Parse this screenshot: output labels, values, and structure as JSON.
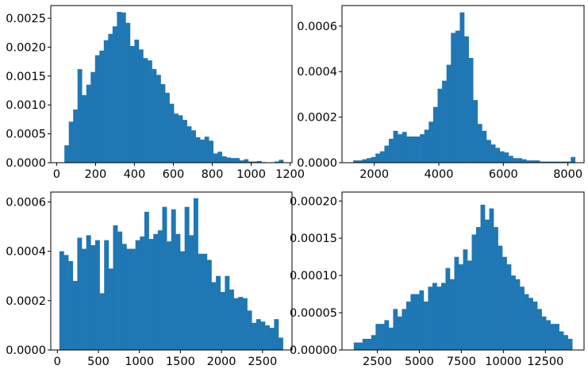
{
  "figure": {
    "background": "#ffffff",
    "bar_color": "#1f77b4"
  },
  "chart_data": [
    {
      "type": "bar",
      "subtype": "histogram",
      "grid": false,
      "xlim": [
        -30,
        1210
      ],
      "ylim": [
        0,
        0.00272
      ],
      "x_ticks": [
        0,
        200,
        400,
        600,
        800,
        1000,
        1200
      ],
      "x_tick_labels": [
        "0",
        "200",
        "400",
        "600",
        "800",
        "1000",
        "1200"
      ],
      "y_ticks": [
        0,
        0.0005,
        0.001,
        0.0015,
        0.002,
        0.0025
      ],
      "y_tick_labels": [
        "0.0000",
        "0.0005",
        "0.0010",
        "0.0015",
        "0.0020",
        "0.0025"
      ],
      "bin_start": 40,
      "bin_width": 22.5,
      "values": [
        0.0003,
        0.00071,
        0.00092,
        0.00162,
        0.00117,
        0.00135,
        0.00157,
        0.00186,
        0.00194,
        0.00212,
        0.00223,
        0.00236,
        0.00261,
        0.0026,
        0.00242,
        0.00202,
        0.00213,
        0.00196,
        0.00181,
        0.00177,
        0.00162,
        0.00152,
        0.00136,
        0.00121,
        0.00102,
        0.00085,
        0.00082,
        0.00074,
        0.00063,
        0.00056,
        0.00044,
        0.0004,
        0.00045,
        0.00038,
        0.00016,
        0.00019,
        0.00011,
        9e-05,
        8e-05,
        8e-05,
        4e-05,
        6e-05,
        2e-05,
        2e-05,
        3e-05,
        1e-05,
        0.0,
        0.0,
        2e-05,
        5e-05
      ]
    },
    {
      "type": "bar",
      "subtype": "histogram",
      "grid": false,
      "xlim": [
        1000,
        8500
      ],
      "ylim": [
        0,
        0.00069
      ],
      "x_ticks": [
        2000,
        4000,
        6000,
        8000
      ],
      "x_tick_labels": [
        "2000",
        "4000",
        "6000",
        "8000"
      ],
      "y_ticks": [
        0,
        0.0002,
        0.0004,
        0.0006
      ],
      "y_tick_labels": [
        "0.0000",
        "0.0002",
        "0.0004",
        "0.0006"
      ],
      "bin_start": 1350,
      "bin_width": 137.5,
      "values": [
        1e-05,
        1e-05,
        1.5e-05,
        2e-05,
        2.5e-05,
        4e-05,
        5e-05,
        7.5e-05,
        0.000105,
        0.00014,
        0.000125,
        0.000135,
        0.000115,
        0.000115,
        0.000115,
        0.000125,
        0.000145,
        0.00018,
        0.000245,
        0.000325,
        0.00036,
        0.00043,
        0.00057,
        0.00058,
        0.00066,
        0.000555,
        0.00046,
        0.000275,
        0.00017,
        0.00014,
        0.0001,
        8e-05,
        6.5e-05,
        5e-05,
        4.5e-05,
        3e-05,
        2e-05,
        2e-05,
        1.5e-05,
        1e-05,
        1e-05,
        1e-05,
        5e-06,
        5e-06,
        5e-06,
        5e-06,
        5e-06,
        5e-06,
        5e-06,
        2.5e-05
      ]
    },
    {
      "type": "bar",
      "subtype": "histogram",
      "grid": false,
      "xlim": [
        -80,
        2860
      ],
      "ylim": [
        0,
        0.00064
      ],
      "x_ticks": [
        0,
        500,
        1000,
        1500,
        2000,
        2500
      ],
      "x_tick_labels": [
        "0",
        "500",
        "1000",
        "1500",
        "2000",
        "2500"
      ],
      "y_ticks": [
        0,
        0.0002,
        0.0004,
        0.0006
      ],
      "y_tick_labels": [
        "0.0000",
        "0.0002",
        "0.0004",
        "0.0006"
      ],
      "bin_start": 25,
      "bin_width": 54.5,
      "values": [
        0.0004,
        0.000385,
        0.00036,
        0.00028,
        0.000455,
        0.00041,
        0.000465,
        0.000425,
        0.000445,
        0.00023,
        0.000445,
        0.00033,
        0.000505,
        0.00048,
        0.00043,
        0.00041,
        0.00041,
        0.000445,
        0.00046,
        0.00056,
        0.00045,
        0.00047,
        0.000485,
        0.00058,
        0.00044,
        0.00057,
        0.00047,
        0.0004,
        0.00058,
        0.000465,
        0.000615,
        0.00039,
        0.00039,
        0.000365,
        0.000275,
        0.0003,
        0.000235,
        0.0003,
        0.000245,
        0.00021,
        0.000215,
        0.00021,
        0.00016,
        0.00011,
        0.000125,
        0.000115,
        0.0001,
        9e-05,
        0.000125,
        5e-05
      ]
    },
    {
      "type": "bar",
      "subtype": "histogram",
      "grid": false,
      "xlim": [
        400,
        14800
      ],
      "ylim": [
        0,
        0.000212
      ],
      "x_ticks": [
        2500,
        5000,
        7500,
        10000,
        12500
      ],
      "x_tick_labels": [
        "2500",
        "5000",
        "7500",
        "10000",
        "12500"
      ],
      "y_ticks": [
        0,
        5e-05,
        0.0001,
        0.00015,
        0.0002
      ],
      "y_tick_labels": [
        "0.00000",
        "0.00005",
        "0.00010",
        "0.00015",
        "0.00020"
      ],
      "bin_start": 1100,
      "bin_width": 260,
      "values": [
        1e-05,
        1e-05,
        1.5e-05,
        1.5e-05,
        2e-05,
        3.5e-05,
        3.5e-05,
        4e-05,
        3e-05,
        5.5e-05,
        4.5e-05,
        5.5e-05,
        6.5e-05,
        7.5e-05,
        7.5e-05,
        8e-05,
        6.5e-05,
        8.5e-05,
        9e-05,
        8.5e-05,
        9e-05,
        0.00011,
        9.5e-05,
        0.000125,
        0.000115,
        0.000135,
        0.00012,
        0.000155,
        0.000165,
        0.000195,
        0.000175,
        0.00019,
        0.000165,
        0.00014,
        0.000125,
        0.000115,
        0.0001,
        9.5e-05,
        8.5e-05,
        7.5e-05,
        7e-05,
        6.5e-05,
        5.5e-05,
        4.5e-05,
        4e-05,
        3.5e-05,
        3.5e-05,
        2.5e-05,
        2e-05,
        1.5e-05
      ]
    }
  ]
}
